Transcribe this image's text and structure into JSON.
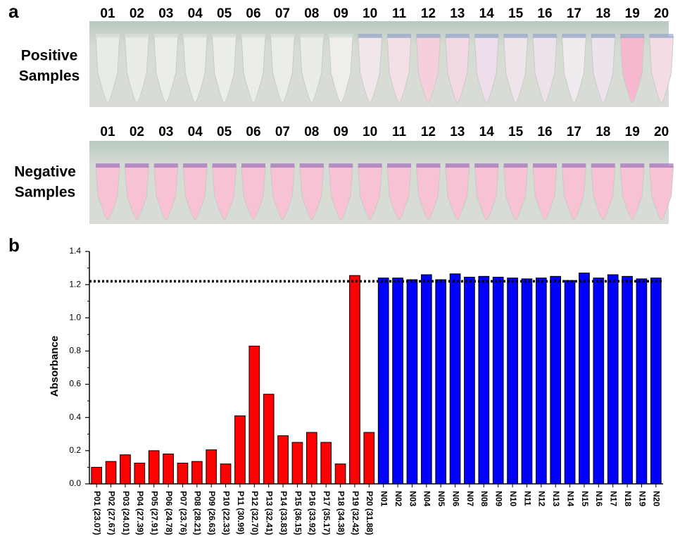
{
  "panel_a": {
    "label": "a",
    "positive": {
      "label_lines": [
        "Positive",
        "Samples"
      ],
      "numbers": [
        "01",
        "02",
        "03",
        "04",
        "05",
        "06",
        "07",
        "08",
        "09",
        "10",
        "11",
        "12",
        "13",
        "14",
        "15",
        "16",
        "17",
        "18",
        "19",
        "20"
      ]
    },
    "negative": {
      "label_lines": [
        "Negative",
        "Samples"
      ],
      "numbers": [
        "01",
        "02",
        "03",
        "04",
        "05",
        "06",
        "07",
        "08",
        "09",
        "10",
        "11",
        "12",
        "13",
        "14",
        "15",
        "16",
        "17",
        "18",
        "19",
        "20"
      ]
    }
  },
  "panel_b": {
    "label": "b"
  },
  "chart_data": {
    "type": "bar",
    "ylabel": "Absorbance",
    "categories": [
      "P01 (23.07)",
      "P02 (27.67)",
      "P03 (24.01)",
      "P04 (27.39)",
      "P05 (27.91)",
      "P06 (24.78)",
      "P07 (23.76)",
      "P08 (28.21)",
      "P09 (26.63)",
      "P10 (22.33)",
      "P11 (30.99)",
      "P12 (32.70)",
      "P13 (32.41)",
      "P14 (33.83)",
      "P15 (36.15)",
      "P16 (33.92)",
      "P17 (35.17)",
      "P18 (34.38)",
      "P19 (32.42)",
      "P20 (31.88)",
      "N01",
      "N02",
      "N03",
      "N04",
      "N05",
      "N06",
      "N07",
      "N08",
      "N09",
      "N10",
      "N11",
      "N12",
      "N13",
      "N14",
      "N15",
      "N16",
      "N17",
      "N18",
      "N19",
      "N20"
    ],
    "series": [
      {
        "color": "#ff0000",
        "values": [
          0.1,
          0.135,
          0.175,
          0.125,
          0.2,
          0.18,
          0.125,
          0.135,
          0.205,
          0.12,
          0.41,
          0.83,
          0.54,
          0.29,
          0.25,
          0.31,
          0.25,
          0.12,
          1.255,
          0.31,
          null,
          null,
          null,
          null,
          null,
          null,
          null,
          null,
          null,
          null,
          null,
          null,
          null,
          null,
          null,
          null,
          null,
          null,
          null,
          null
        ]
      },
      {
        "color": "#0000ff",
        "values": [
          null,
          null,
          null,
          null,
          null,
          null,
          null,
          null,
          null,
          null,
          null,
          null,
          null,
          null,
          null,
          null,
          null,
          null,
          null,
          null,
          1.24,
          1.24,
          1.23,
          1.26,
          1.23,
          1.265,
          1.245,
          1.25,
          1.245,
          1.24,
          1.235,
          1.24,
          1.25,
          1.225,
          1.27,
          1.24,
          1.26,
          1.25,
          1.235,
          1.24
        ]
      }
    ],
    "threshold": 1.22,
    "ylim": [
      0,
      1.4
    ],
    "yticks": [
      {
        "value": 0,
        "label": "0.0"
      },
      0.2,
      0.4,
      0.6,
      0.8,
      {
        "value": 1,
        "label": "1.0"
      },
      1.2,
      1.4
    ]
  }
}
